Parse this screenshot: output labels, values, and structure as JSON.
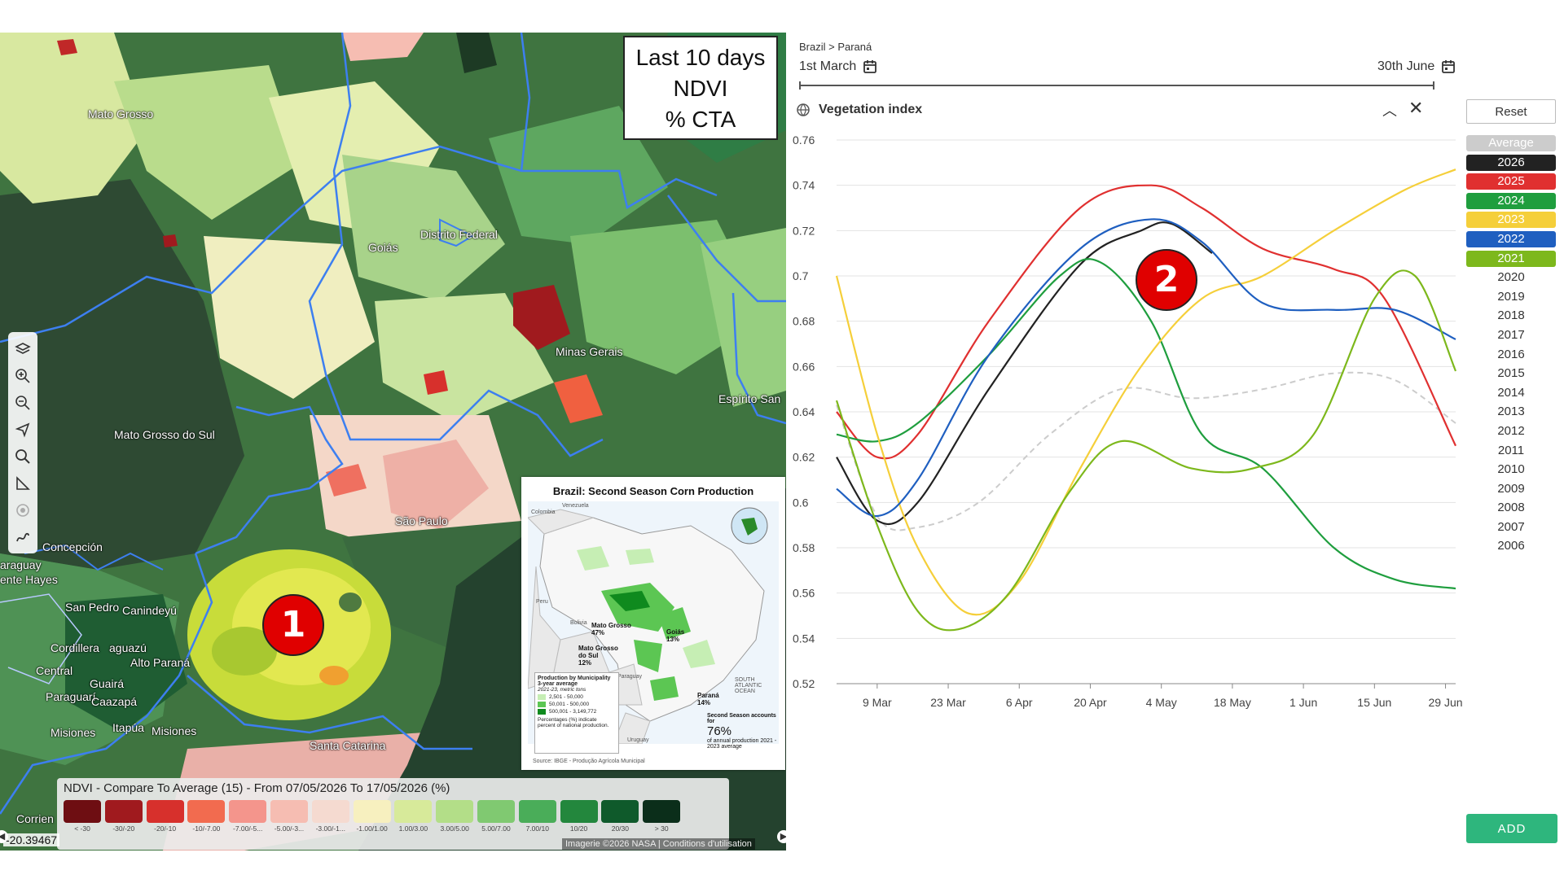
{
  "map": {
    "title_lines": [
      "Last 10 days",
      "NDVI",
      "% CTA"
    ],
    "place_labels": [
      "Mato Grosso",
      "Goiás",
      "Distrito Federal",
      "Minas Gerais",
      "Mato Grosso do Sul",
      "Espírito San",
      "São Paulo",
      "Concepción",
      "araguay",
      "ente Hayes",
      "San Pedro",
      "Canindeyú",
      "Cordillera",
      "aguazú",
      "Alto Paraná",
      "Central",
      "Guairá",
      "Paraguarí",
      "Caazapá",
      "Misiones",
      "Itapúa",
      "Misiones",
      "Santa Catarina",
      "Corrien"
    ],
    "marker_label": "1",
    "coord_readout": "-20.39467",
    "attribution": "Imagerie ©2026 NASA | Conditions d'utilisation",
    "tools": [
      "layers-icon",
      "zoom-in-icon",
      "zoom-out-icon",
      "navigate-icon",
      "search-icon",
      "measure-icon",
      "target-icon",
      "draw-icon"
    ]
  },
  "legend": {
    "title": "NDVI - Compare To Average (15) - From 07/05/2026 To 17/05/2026 (%)",
    "items": [
      {
        "label": "< -30",
        "color": "#6e0e12"
      },
      {
        "label": "-30/-20",
        "color": "#a01a1e"
      },
      {
        "label": "-20/-10",
        "color": "#d7302c"
      },
      {
        "label": "-10/-7.00",
        "color": "#f26b4f"
      },
      {
        "label": "-7.00/-5...",
        "color": "#f4958c"
      },
      {
        "label": "-5.00/-3...",
        "color": "#f6bdb2"
      },
      {
        "label": "-3.00/-1...",
        "color": "#f5dad0"
      },
      {
        "label": "-1.00/1.00",
        "color": "#f7f0bf"
      },
      {
        "label": "1.00/3.00",
        "color": "#d7ea9a"
      },
      {
        "label": "3.00/5.00",
        "color": "#b3de88"
      },
      {
        "label": "5.00/7.00",
        "color": "#80c971"
      },
      {
        "label": "7.00/10",
        "color": "#4aad59"
      },
      {
        "label": "10/20",
        "color": "#23873d"
      },
      {
        "label": "20/30",
        "color": "#0f5a2b"
      },
      {
        "label": "> 30",
        "color": "#0b2e1a"
      }
    ]
  },
  "inset": {
    "title": "Brazil: Second Season Corn Production",
    "country_labels": [
      "Colombia",
      "Venezuela",
      "Peru",
      "Bolivia",
      "Paraguay",
      "Uruguay",
      "SOUTH ATLANTIC OCEAN"
    ],
    "state_shares": [
      {
        "name": "Mato Grosso",
        "share": "47%"
      },
      {
        "name": "Goiás",
        "share": "13%"
      },
      {
        "name": "Mato Grosso do Sul",
        "share": "12%"
      },
      {
        "name": "Paraná",
        "share": "14%"
      }
    ],
    "legend_title": "Production by Municipality 3-year average",
    "legend_subtitle": "2021-23, metric tons",
    "legend_items": [
      {
        "label": "2,501 - 50,000",
        "color": "#c6eeb4"
      },
      {
        "label": "50,001 - 500,000",
        "color": "#5cc653"
      },
      {
        "label": "500,001 - 3,149,772",
        "color": "#0f8a1e"
      }
    ],
    "legend_note": "Percentages (%) indicate percent of national production.",
    "second_season_text": "Second Season accounts for",
    "second_season_pct": "76%",
    "second_season_sub": "of annual production 2021 - 2023 average",
    "source": "Source: IBGE - Produção Agrícola Municipal"
  },
  "chart_panel": {
    "breadcrumb": "Brazil > Paraná",
    "start_date": "1st March",
    "end_date": "30th June",
    "section_title": "Vegetation index",
    "reset_label": "Reset",
    "add_label": "ADD",
    "marker_label": "2",
    "years": [
      {
        "label": "Average",
        "color": "#cccccc",
        "active": true
      },
      {
        "label": "2026",
        "color": "#222222",
        "active": true
      },
      {
        "label": "2025",
        "color": "#e03030",
        "active": true
      },
      {
        "label": "2024",
        "color": "#1f9e3e",
        "active": true
      },
      {
        "label": "2023",
        "color": "#f5cf3a",
        "active": true
      },
      {
        "label": "2022",
        "color": "#1f5fc0",
        "active": true
      },
      {
        "label": "2021",
        "color": "#7db81c",
        "active": true
      },
      {
        "label": "2020",
        "active": false
      },
      {
        "label": "2019",
        "active": false
      },
      {
        "label": "2018",
        "active": false
      },
      {
        "label": "2017",
        "active": false
      },
      {
        "label": "2016",
        "active": false
      },
      {
        "label": "2015",
        "active": false
      },
      {
        "label": "2014",
        "active": false
      },
      {
        "label": "2013",
        "active": false
      },
      {
        "label": "2012",
        "active": false
      },
      {
        "label": "2011",
        "active": false
      },
      {
        "label": "2010",
        "active": false
      },
      {
        "label": "2009",
        "active": false
      },
      {
        "label": "2008",
        "active": false
      },
      {
        "label": "2007",
        "active": false
      },
      {
        "label": "2006",
        "active": false
      }
    ]
  },
  "chart_data": {
    "type": "line",
    "x_labels": [
      "9 Mar",
      "23 Mar",
      "6 Apr",
      "20 Apr",
      "4 May",
      "18 May",
      "1 Jun",
      "15 Jun",
      "29 Jun"
    ],
    "x_days": [
      8,
      22,
      36,
      50,
      64,
      78,
      92,
      106,
      120
    ],
    "x_range": [
      0,
      122
    ],
    "ylim": [
      0.52,
      0.76
    ],
    "y_ticks": [
      0.52,
      0.54,
      0.56,
      0.58,
      0.6,
      0.62,
      0.64,
      0.66,
      0.68,
      0.7,
      0.72,
      0.74,
      0.76
    ],
    "grid": true,
    "series": [
      {
        "name": "Average",
        "color": "#cccccc",
        "dashed": true,
        "points": [
          [
            0,
            0.643
          ],
          [
            8,
            0.594
          ],
          [
            16,
            0.589
          ],
          [
            28,
            0.6
          ],
          [
            42,
            0.63
          ],
          [
            56,
            0.65
          ],
          [
            70,
            0.646
          ],
          [
            84,
            0.65
          ],
          [
            98,
            0.657
          ],
          [
            110,
            0.654
          ],
          [
            122,
            0.635
          ]
        ]
      },
      {
        "name": "2026",
        "color": "#222222",
        "points": [
          [
            0,
            0.62
          ],
          [
            8,
            0.592
          ],
          [
            16,
            0.6
          ],
          [
            30,
            0.65
          ],
          [
            48,
            0.705
          ],
          [
            60,
            0.72
          ],
          [
            66,
            0.723
          ],
          [
            74,
            0.71
          ]
        ]
      },
      {
        "name": "2025",
        "color": "#e03030",
        "points": [
          [
            0,
            0.64
          ],
          [
            8,
            0.62
          ],
          [
            16,
            0.63
          ],
          [
            30,
            0.68
          ],
          [
            48,
            0.73
          ],
          [
            62,
            0.74
          ],
          [
            72,
            0.73
          ],
          [
            84,
            0.712
          ],
          [
            98,
            0.703
          ],
          [
            108,
            0.69
          ],
          [
            122,
            0.625
          ]
        ]
      },
      {
        "name": "2024",
        "color": "#1f9e3e",
        "points": [
          [
            0,
            0.63
          ],
          [
            8,
            0.627
          ],
          [
            16,
            0.635
          ],
          [
            30,
            0.665
          ],
          [
            44,
            0.7
          ],
          [
            52,
            0.706
          ],
          [
            62,
            0.68
          ],
          [
            72,
            0.63
          ],
          [
            84,
            0.615
          ],
          [
            98,
            0.58
          ],
          [
            110,
            0.566
          ],
          [
            122,
            0.562
          ]
        ]
      },
      {
        "name": "2023",
        "color": "#f5cf3a",
        "points": [
          [
            0,
            0.7
          ],
          [
            8,
            0.63
          ],
          [
            16,
            0.58
          ],
          [
            26,
            0.551
          ],
          [
            36,
            0.565
          ],
          [
            48,
            0.615
          ],
          [
            60,
            0.66
          ],
          [
            72,
            0.69
          ],
          [
            84,
            0.7
          ],
          [
            98,
            0.72
          ],
          [
            112,
            0.738
          ],
          [
            122,
            0.747
          ]
        ]
      },
      {
        "name": "2022",
        "color": "#1f5fc0",
        "points": [
          [
            0,
            0.606
          ],
          [
            8,
            0.594
          ],
          [
            16,
            0.61
          ],
          [
            30,
            0.665
          ],
          [
            48,
            0.712
          ],
          [
            62,
            0.725
          ],
          [
            72,
            0.715
          ],
          [
            84,
            0.688
          ],
          [
            98,
            0.685
          ],
          [
            110,
            0.685
          ],
          [
            122,
            0.672
          ]
        ]
      },
      {
        "name": "2021",
        "color": "#7db81c",
        "points": [
          [
            0,
            0.645
          ],
          [
            8,
            0.59
          ],
          [
            16,
            0.552
          ],
          [
            24,
            0.544
          ],
          [
            34,
            0.56
          ],
          [
            46,
            0.605
          ],
          [
            56,
            0.627
          ],
          [
            70,
            0.615
          ],
          [
            82,
            0.615
          ],
          [
            94,
            0.63
          ],
          [
            106,
            0.69
          ],
          [
            114,
            0.7
          ],
          [
            122,
            0.658
          ]
        ]
      }
    ]
  }
}
